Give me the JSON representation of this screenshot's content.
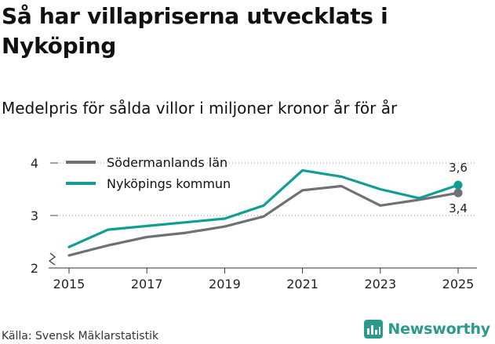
{
  "title": "Så har villapriserna utvecklats i Nyköping",
  "subtitle": "Medelpris för sålda villor i miljoner kronor år för år",
  "source": "Källa: Svensk Mäklarstatistik",
  "brand": {
    "name": "Newsworthy",
    "icon": "newsworthy-logo-icon",
    "color": "#2b9a8e"
  },
  "chart_data": {
    "type": "line",
    "x": [
      2015,
      2016,
      2017,
      2018,
      2019,
      2020,
      2021,
      2022,
      2023,
      2024,
      2025
    ],
    "xticks": [
      2015,
      2017,
      2019,
      2021,
      2023,
      2025
    ],
    "yticks": [
      2,
      3,
      4
    ],
    "ylim": [
      2,
      4.2
    ],
    "y_axis_broken": true,
    "legend_position": "top-left",
    "series": [
      {
        "name": "Södermanlands län",
        "color": "#707075",
        "values": [
          2.24,
          2.43,
          2.59,
          2.67,
          2.79,
          2.98,
          3.48,
          3.56,
          3.19,
          3.3,
          3.43
        ],
        "end_label": "3,4"
      },
      {
        "name": "Nyköpings kommun",
        "color": "#109e94",
        "values": [
          2.4,
          2.73,
          2.8,
          2.87,
          2.94,
          3.19,
          3.86,
          3.74,
          3.5,
          3.33,
          3.58
        ],
        "end_label": "3,6"
      }
    ]
  }
}
